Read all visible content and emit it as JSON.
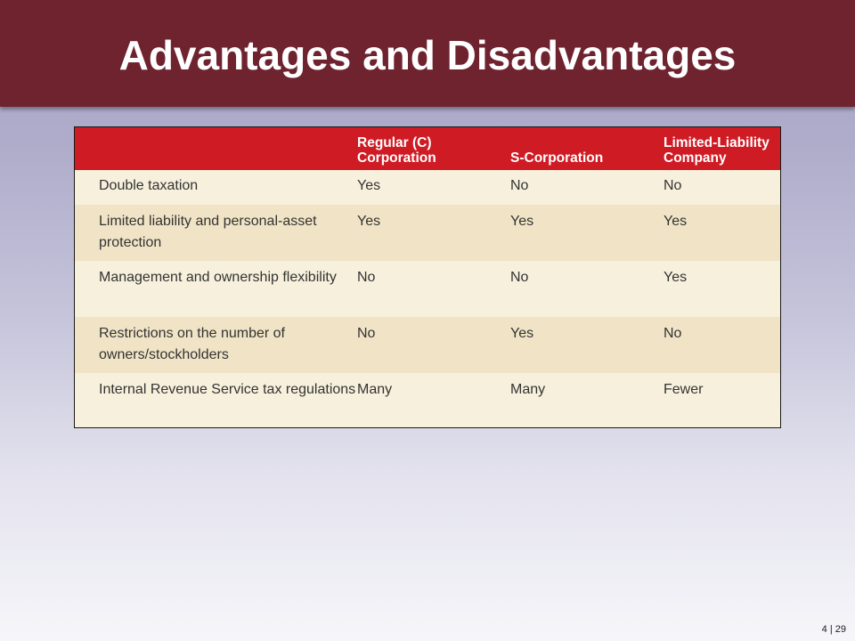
{
  "slide": {
    "title": "Advantages and Disadvantages",
    "page_number": "4 | 29"
  },
  "table": {
    "headers": [
      "",
      "Regular (C) Corporation",
      "S-Corporation",
      "Limited-Liability Company"
    ],
    "rows": [
      [
        "Double taxation",
        "Yes",
        "No",
        "No"
      ],
      [
        "Limited liability and personal-asset protection",
        "Yes",
        "Yes",
        "Yes"
      ],
      [
        "Management and ownership flexibility",
        "No",
        "No",
        "Yes"
      ],
      [
        "Restrictions on the number of owners/stockholders",
        "No",
        "Yes",
        "No"
      ],
      [
        "Internal Revenue Service tax regulations",
        "Many",
        "Many",
        "Fewer"
      ]
    ]
  },
  "colors": {
    "title_bar": "#6e232f",
    "header_row": "#cf1b24",
    "row_light": "#f7f0dc",
    "row_dark": "#f1e4c6"
  }
}
